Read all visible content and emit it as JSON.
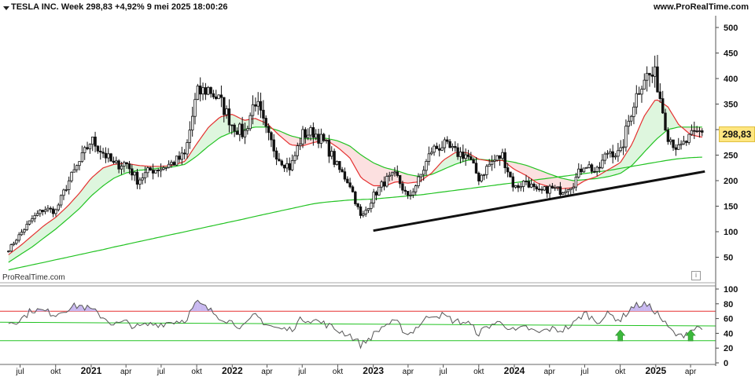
{
  "header": {
    "title": "TESLA INC. Week 298,83 +4,92% 9 mei 2025 18:00:26",
    "source": "www.ProRealTime.com"
  },
  "watermark": "ProRealTime.com",
  "price_badge": "298,83",
  "colors": {
    "candles": "#111111",
    "ma_short": "#22c322",
    "ma_mid": "#e53030",
    "ma_long": "#22c322",
    "trendline": "#111111",
    "rsi_line": "#555555",
    "rsi_upper": "#e53030",
    "rsi_lower": "#22c322",
    "signal_arrow": "#3cb83c",
    "fill_green": "#d8f4d8",
    "fill_red": "#fbdada",
    "fill_purple": "#c8b8f0",
    "badge": "#ffe680"
  },
  "chart_data": [
    {
      "type": "candlestick-weekly",
      "title": "TESLA INC. Week 298,83 +4,92% 9 mei 2025 18:00:26",
      "ylim": [
        0,
        520
      ],
      "y_ticks": [
        50,
        100,
        150,
        200,
        250,
        300,
        350,
        400,
        450,
        500
      ],
      "x": [
        "2020-06-01",
        "2020-07-01",
        "2020-08-01",
        "2020-09-01",
        "2020-10-01",
        "2020-11-01",
        "2020-12-01",
        "2021-01-01",
        "2021-02-01",
        "2021-03-01",
        "2021-04-01",
        "2021-05-01",
        "2021-06-01",
        "2021-07-01",
        "2021-08-01",
        "2021-09-01",
        "2021-10-01",
        "2021-11-01",
        "2021-12-01",
        "2022-01-01",
        "2022-02-01",
        "2022-03-01",
        "2022-04-01",
        "2022-05-01",
        "2022-06-01",
        "2022-07-01",
        "2022-08-01",
        "2022-09-01",
        "2022-10-01",
        "2022-11-01",
        "2022-12-01",
        "2023-01-01",
        "2023-02-01",
        "2023-03-01",
        "2023-04-01",
        "2023-05-01",
        "2023-06-01",
        "2023-07-01",
        "2023-08-01",
        "2023-09-01",
        "2023-10-01",
        "2023-11-01",
        "2023-12-01",
        "2024-01-01",
        "2024-02-01",
        "2024-03-01",
        "2024-04-01",
        "2024-05-01",
        "2024-06-01",
        "2024-07-01",
        "2024-08-01",
        "2024-09-01",
        "2024-10-01",
        "2024-11-01",
        "2024-12-01",
        "2025-01-01",
        "2025-02-01",
        "2025-03-01",
        "2025-04-01",
        "2025-05-01"
      ],
      "close": [
        65,
        95,
        125,
        145,
        140,
        195,
        235,
        280,
        255,
        230,
        235,
        200,
        220,
        225,
        235,
        250,
        370,
        380,
        355,
        310,
        290,
        360,
        290,
        245,
        225,
        290,
        295,
        270,
        225,
        195,
        125,
        170,
        200,
        210,
        165,
        205,
        260,
        270,
        255,
        250,
        205,
        235,
        250,
        185,
        200,
        175,
        185,
        180,
        195,
        235,
        215,
        260,
        250,
        345,
        405,
        405,
        290,
        260,
        285,
        298.83
      ],
      "series": [
        {
          "name": "",
          "kind": "moving-average",
          "values": [
            55,
            72,
            92,
            112,
            128,
            150,
            175,
            205,
            225,
            232,
            234,
            230,
            228,
            228,
            230,
            238,
            272,
            305,
            325,
            330,
            318,
            322,
            312,
            290,
            270,
            268,
            275,
            280,
            265,
            245,
            205,
            190,
            190,
            198,
            195,
            198,
            215,
            240,
            255,
            255,
            242,
            238,
            240,
            222,
            210,
            195,
            188,
            184,
            186,
            200,
            208,
            222,
            235,
            272,
            325,
            360,
            345,
            310,
            290,
            285
          ]
        },
        {
          "name": "",
          "kind": "moving-average",
          "values": [
            40,
            55,
            70,
            88,
            105,
            125,
            145,
            170,
            190,
            205,
            215,
            220,
            222,
            225,
            227,
            232,
            248,
            268,
            285,
            295,
            300,
            305,
            305,
            298,
            288,
            282,
            282,
            283,
            278,
            268,
            250,
            235,
            225,
            220,
            212,
            208,
            212,
            222,
            232,
            240,
            242,
            240,
            240,
            236,
            230,
            222,
            213,
            205,
            200,
            202,
            204,
            208,
            214,
            230,
            255,
            280,
            300,
            305,
            305,
            305
          ]
        },
        {
          "name": "",
          "kind": "moving-average",
          "values": [
            25,
            30,
            35,
            40,
            45,
            50,
            55,
            60,
            65,
            70,
            75,
            80,
            85,
            90,
            95,
            100,
            105,
            110,
            115,
            120,
            125,
            130,
            135,
            140,
            145,
            150,
            155,
            158,
            160,
            162,
            163,
            164,
            166,
            168,
            170,
            172,
            175,
            178,
            181,
            184,
            187,
            190,
            193,
            196,
            199,
            202,
            205,
            208,
            211,
            214,
            217,
            220,
            224,
            228,
            232,
            236,
            240,
            243,
            245,
            246
          ]
        },
        {
          "name": "",
          "kind": "trendline",
          "values": [
            [
              "2023-01-01",
              102
            ],
            [
              "2025-05-08",
              218
            ]
          ]
        }
      ]
    },
    {
      "type": "line",
      "ylim": [
        0,
        100
      ],
      "y_ticks": [
        0,
        20,
        40,
        60,
        80,
        100
      ],
      "levels": [
        30,
        70
      ],
      "x_ticks": [
        "jul",
        "okt",
        "2021",
        "apr",
        "jul",
        "okt",
        "2022",
        "apr",
        "jul",
        "okt",
        "2023",
        "apr",
        "jul",
        "okt",
        "2024",
        "apr",
        "jul",
        "okt",
        "2025",
        "apr"
      ],
      "series": [
        {
          "name": "",
          "values": [
            55,
            58,
            72,
            70,
            66,
            74,
            78,
            72,
            62,
            52,
            55,
            48,
            52,
            53,
            56,
            58,
            82,
            72,
            62,
            55,
            48,
            65,
            52,
            46,
            45,
            60,
            58,
            52,
            44,
            38,
            24,
            38,
            52,
            55,
            38,
            52,
            66,
            64,
            56,
            55,
            40,
            52,
            55,
            42,
            48,
            40,
            46,
            44,
            52,
            68,
            56,
            66,
            58,
            76,
            80,
            70,
            48,
            35,
            44,
            50
          ]
        }
      ],
      "signals": [
        "2024-10-01",
        "2025-04-01"
      ]
    }
  ]
}
